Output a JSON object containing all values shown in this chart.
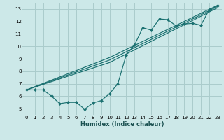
{
  "xlabel": "Humidex (Indice chaleur)",
  "xlim": [
    -0.5,
    23.5
  ],
  "ylim": [
    4.5,
    13.5
  ],
  "xticks": [
    0,
    1,
    2,
    3,
    4,
    5,
    6,
    7,
    8,
    9,
    10,
    11,
    12,
    13,
    14,
    15,
    16,
    17,
    18,
    19,
    20,
    21,
    22,
    23
  ],
  "yticks": [
    5,
    6,
    7,
    8,
    9,
    10,
    11,
    12,
    13
  ],
  "background_color": "#cce8e8",
  "grid_color": "#aacccc",
  "line_color": "#1a7070",
  "line1_x": [
    0,
    1,
    2,
    3,
    4,
    5,
    6,
    7,
    8,
    9,
    10,
    11,
    12,
    13,
    14,
    15,
    16,
    17,
    18,
    19,
    20,
    21,
    22,
    23
  ],
  "line1_y": [
    6.5,
    6.5,
    6.5,
    6.0,
    5.4,
    5.5,
    5.5,
    4.95,
    5.45,
    5.65,
    6.2,
    7.0,
    9.3,
    10.1,
    11.5,
    11.3,
    12.2,
    12.15,
    11.65,
    11.8,
    11.85,
    11.7,
    12.95,
    13.25
  ],
  "line2_x": [
    0,
    10,
    23
  ],
  "line2_y": [
    6.5,
    8.7,
    13.1
  ],
  "line3_x": [
    0,
    10,
    23
  ],
  "line3_y": [
    6.5,
    8.9,
    13.2
  ],
  "line4_x": [
    0,
    10,
    23
  ],
  "line4_y": [
    6.5,
    9.1,
    13.3
  ],
  "marker_size": 2.5
}
